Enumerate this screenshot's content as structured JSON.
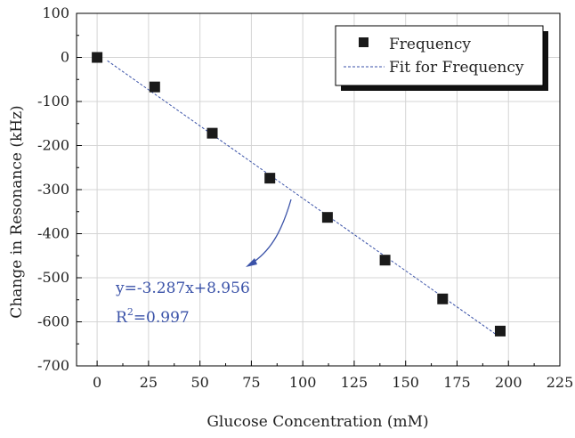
{
  "chart_data": {
    "type": "scatter",
    "xlabel": "Glucose Concentration (mM)",
    "ylabel": "Change in Resonance (kHz)",
    "xlim": [
      -10,
      225
    ],
    "ylim": [
      -700,
      100
    ],
    "xticks": [
      "0",
      "25",
      "50",
      "75",
      "100",
      "125",
      "150",
      "175",
      "200",
      "225"
    ],
    "yticks": [
      "100",
      "0",
      "-100",
      "-200",
      "-300",
      "-400",
      "-500",
      "-600",
      "-700"
    ],
    "grid": true,
    "legend_position": "top-right",
    "series": [
      {
        "name": "Frequency",
        "kind": "scatter",
        "marker": "square",
        "color": "#1a1a1a",
        "x": [
          0,
          28,
          56,
          84,
          112,
          140,
          168,
          196
        ],
        "y": [
          0,
          -67,
          -172,
          -274,
          -363,
          -460,
          -548,
          -621
        ]
      },
      {
        "name": "Fit for Frequency",
        "kind": "line",
        "style": "dashed",
        "color": "#3a52a8",
        "x": [
          5,
          195
        ],
        "y": [
          -7.5,
          -632
        ]
      }
    ],
    "annotation": {
      "equation": "y=-3.287x+8.956",
      "r2_label": "R",
      "r2_sup": "2",
      "r2_value": "=0.997",
      "color": "#3a52a8"
    }
  }
}
